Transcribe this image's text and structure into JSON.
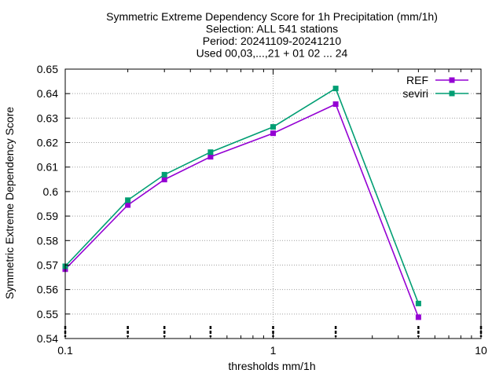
{
  "chart_data": {
    "type": "line",
    "title": [
      "Symmetric Extreme Dependency Score  for 1h Precipitation (mm/1h)",
      "Selection: ALL    541 stations",
      "Period: 20241109-20241210",
      "Used 00,03,...,21 + 01 02 ... 24"
    ],
    "xlabel": "thresholds mm/1h",
    "ylabel": "Symmetric Extreme Dependency Score",
    "x_scale": "log",
    "xlim": [
      0.1,
      10
    ],
    "ylim": [
      0.54,
      0.65
    ],
    "x_ticks": [
      0.1,
      1,
      10
    ],
    "x_tick_labels": [
      "0.1",
      "1",
      "10"
    ],
    "y_ticks": [
      0.54,
      0.55,
      0.56,
      0.57,
      0.58,
      0.59,
      0.6,
      0.61,
      0.62,
      0.63,
      0.64,
      0.65
    ],
    "y_tick_labels": [
      "0.54",
      "0.55",
      "0.56",
      "0.57",
      "0.58",
      "0.59",
      "0.6",
      "0.61",
      "0.62",
      "0.63",
      "0.64",
      "0.65"
    ],
    "grid": true,
    "legend_position": "top-right",
    "x": [
      0.1,
      0.2,
      0.3,
      0.5,
      1,
      2,
      5
    ],
    "series": [
      {
        "name": "REF",
        "color": "#9400d3",
        "values": [
          0.5683,
          0.5945,
          0.6049,
          0.6142,
          0.6238,
          0.6357,
          0.5487
        ]
      },
      {
        "name": "seviri",
        "color": "#009e73",
        "values": [
          0.5695,
          0.5965,
          0.6069,
          0.6161,
          0.6264,
          0.6421,
          0.5543
        ]
      }
    ],
    "marker_x": [
      0.1,
      0.2,
      0.3,
      0.5,
      1,
      2,
      5,
      10
    ]
  }
}
